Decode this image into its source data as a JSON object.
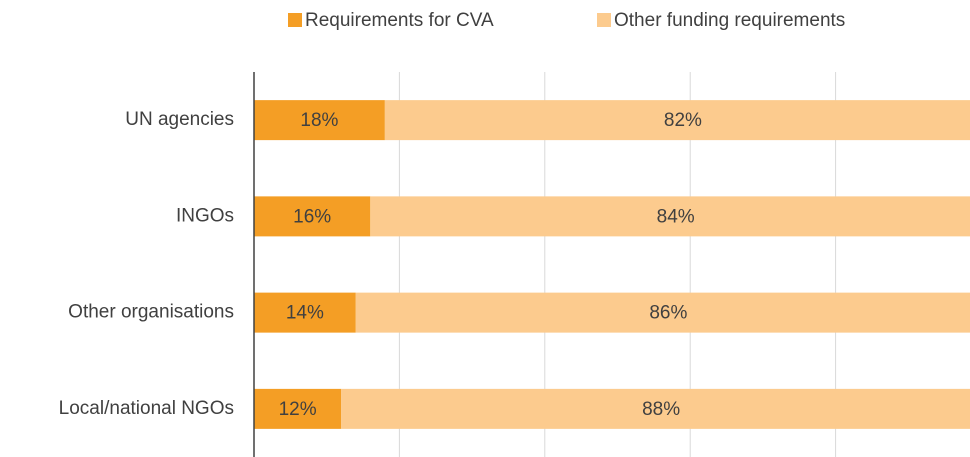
{
  "chart_data": {
    "type": "stacked_barh",
    "categories": [
      "UN agencies",
      "INGOs",
      "Other organisations",
      "Local/national NGOs"
    ],
    "series": [
      {
        "name": "Requirements for CVA",
        "color": "#f49e25",
        "values": [
          18,
          16,
          14,
          12
        ],
        "value_labels": [
          "18%",
          "16%",
          "14%",
          "12%"
        ]
      },
      {
        "name": "Other funding requirements",
        "color": "#fccb8e",
        "values": [
          82,
          84,
          86,
          88
        ],
        "value_labels": [
          "82%",
          "84%",
          "86%",
          "88%"
        ]
      }
    ],
    "xlim": [
      0,
      100
    ],
    "xticks": [
      0,
      20,
      40,
      60,
      80,
      100
    ],
    "grid": true,
    "legend": "top"
  }
}
